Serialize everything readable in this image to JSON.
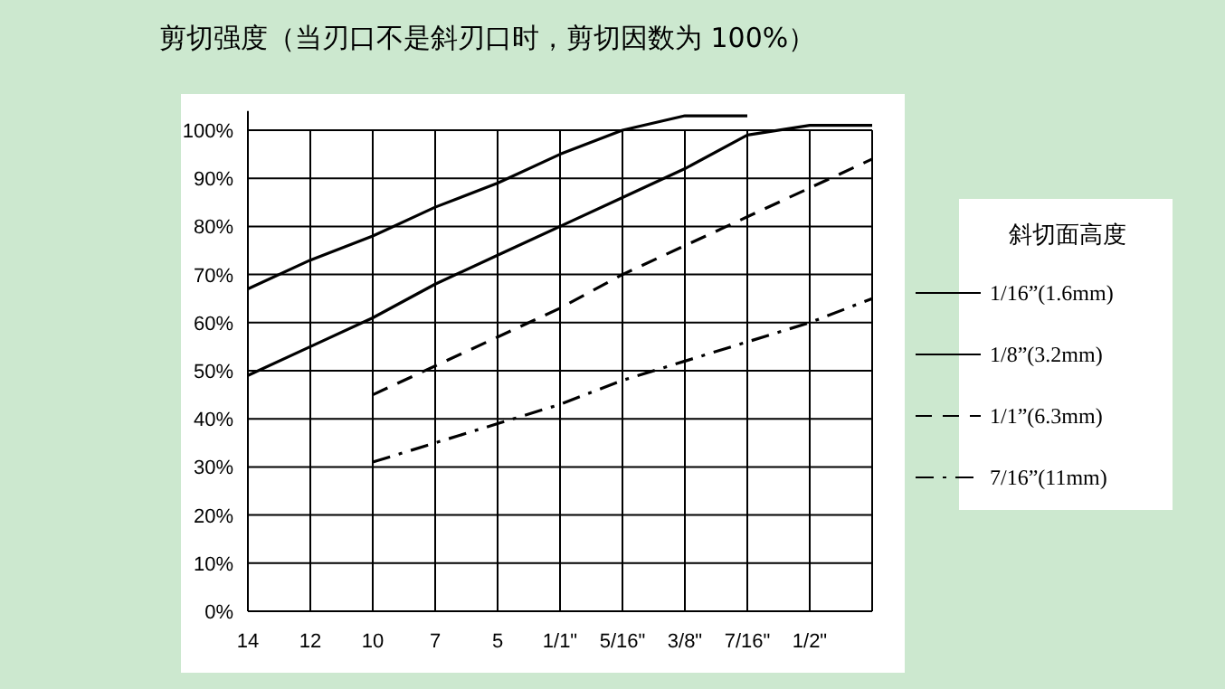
{
  "chart_data": {
    "type": "line",
    "title": "剪切强度（当刃口不是斜刃口时，剪切因数为 100%）",
    "legend_title": "斜切面高度",
    "legend": "right",
    "grid": true,
    "categories": [
      "14",
      "12",
      "10",
      "7",
      "5",
      "1/1\"",
      "5/16\"",
      "3/8\"",
      "7/16\"",
      "1/2\"",
      null
    ],
    "ylim": [
      0,
      104
    ],
    "yticks": [
      {
        "value": 0,
        "label": "0%"
      },
      {
        "value": 10,
        "label": "10%"
      },
      {
        "value": 20,
        "label": "20%"
      },
      {
        "value": 30,
        "label": "30%"
      },
      {
        "value": 40,
        "label": "40%"
      },
      {
        "value": 50,
        "label": "50%"
      },
      {
        "value": 60,
        "label": "60%"
      },
      {
        "value": 70,
        "label": "70%"
      },
      {
        "value": 80,
        "label": "80%"
      },
      {
        "value": 90,
        "label": "90%"
      },
      {
        "value": 100,
        "label": "100%"
      }
    ],
    "series": [
      {
        "name": "1/16”(1.6mm)",
        "color": "#000000",
        "line_style": "solid",
        "values": [
          67,
          73,
          78,
          84,
          89,
          95,
          100,
          103,
          103,
          null,
          null
        ]
      },
      {
        "name": "1/8”(3.2mm)",
        "color": "#000000",
        "line_style": "solid",
        "values": [
          49,
          55,
          61,
          68,
          74,
          80,
          86,
          92,
          99,
          101,
          101
        ]
      },
      {
        "name": "1/1”(6.3mm)",
        "color": "#000000",
        "line_style": "dashed",
        "values": [
          null,
          null,
          45,
          51,
          57,
          63,
          70,
          76,
          82,
          88,
          94
        ]
      },
      {
        "name": "7/16”(11mm)",
        "color": "#000000",
        "line_style": "dashdot",
        "values": [
          null,
          null,
          31,
          35,
          39,
          43,
          48,
          52,
          56,
          60,
          65
        ]
      }
    ]
  }
}
